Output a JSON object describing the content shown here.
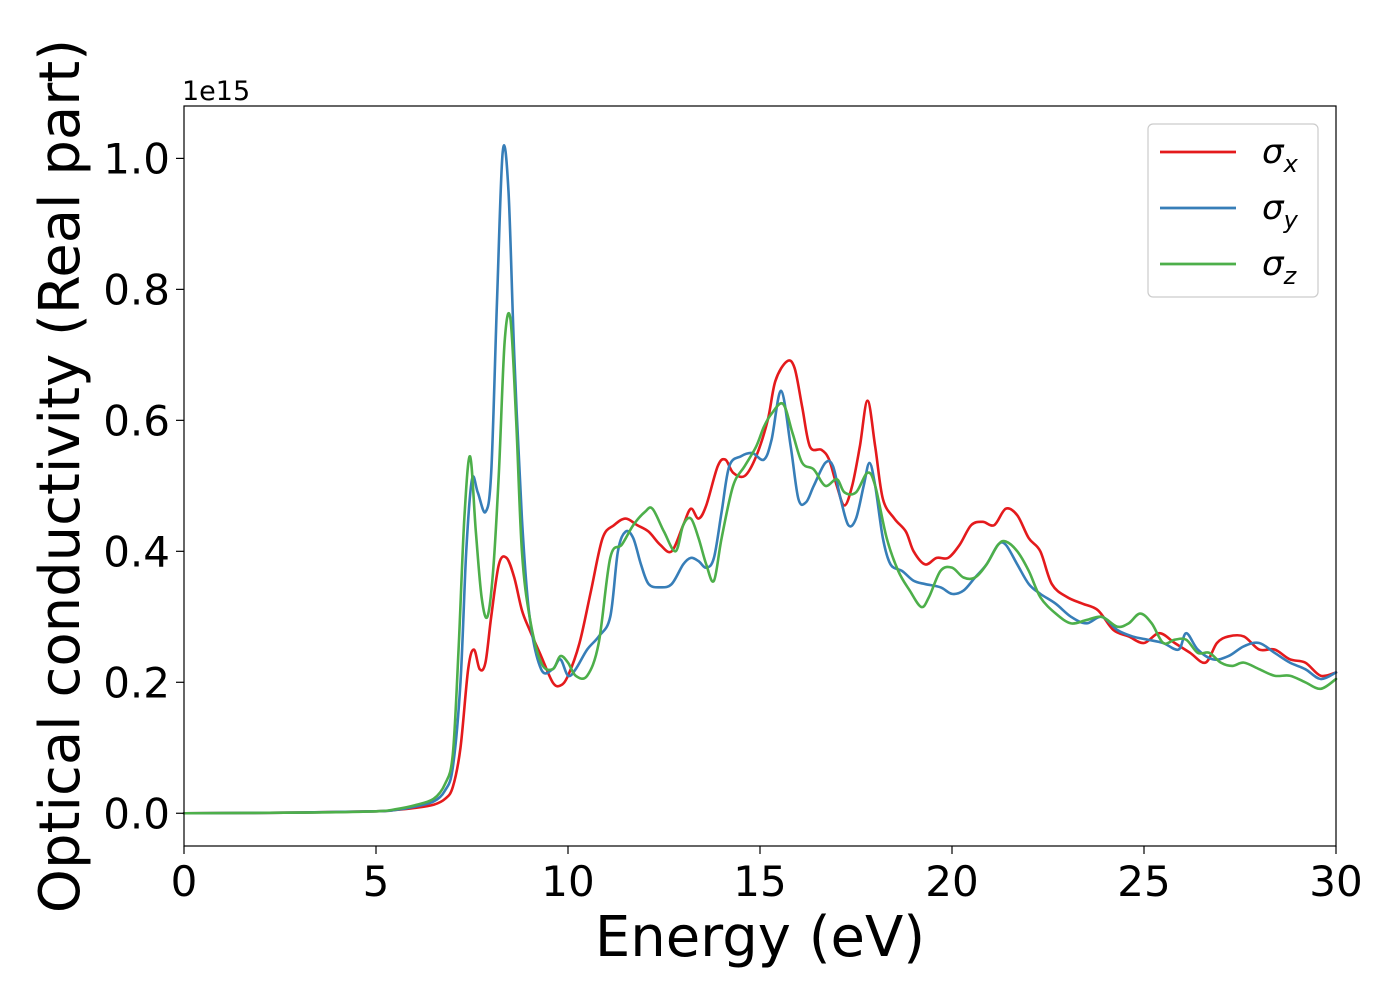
{
  "chart_data": {
    "type": "line",
    "title": "",
    "xlabel": "Energy (eV)",
    "ylabel": "Optical conductivity (Real part)",
    "y_offset_text": "1e15",
    "xlim": [
      0,
      30
    ],
    "ylim": [
      -0.05,
      1.08
    ],
    "x_ticks": [
      0,
      5,
      10,
      15,
      20,
      25,
      30
    ],
    "x_tick_labels": [
      "0",
      "5",
      "10",
      "15",
      "20",
      "25",
      "30"
    ],
    "y_ticks": [
      0.0,
      0.2,
      0.4,
      0.6,
      0.8,
      1.0
    ],
    "y_tick_labels": [
      "0.0",
      "0.2",
      "0.4",
      "0.6",
      "0.8",
      "1.0"
    ],
    "grid": false,
    "legend_position": "top-right",
    "series": [
      {
        "name": "σx",
        "legend_base": "σ",
        "legend_sub": "x",
        "color": "#e41a1c",
        "x": [
          0,
          3,
          5,
          5.5,
          6,
          6.5,
          6.8,
          7.0,
          7.2,
          7.4,
          7.55,
          7.7,
          7.85,
          8.0,
          8.2,
          8.4,
          8.6,
          8.8,
          9.0,
          9.3,
          9.6,
          9.8,
          10.0,
          10.3,
          10.6,
          10.9,
          11.2,
          11.5,
          11.8,
          12.1,
          12.4,
          12.7,
          13.0,
          13.2,
          13.4,
          13.6,
          13.9,
          14.1,
          14.3,
          14.6,
          14.9,
          15.2,
          15.4,
          15.7,
          15.9,
          16.1,
          16.3,
          16.6,
          16.8,
          17.0,
          17.2,
          17.4,
          17.6,
          17.8,
          18.0,
          18.2,
          18.5,
          18.8,
          19.0,
          19.3,
          19.6,
          19.9,
          20.2,
          20.5,
          20.8,
          21.1,
          21.4,
          21.7,
          22.0,
          22.3,
          22.6,
          23.0,
          23.4,
          23.8,
          24.2,
          24.6,
          25.0,
          25.4,
          25.8,
          26.2,
          26.6,
          26.9,
          27.2,
          27.6,
          28.0,
          28.4,
          28.8,
          29.2,
          29.6,
          30.0
        ],
        "y": [
          0.0,
          0.001,
          0.003,
          0.005,
          0.008,
          0.013,
          0.022,
          0.04,
          0.1,
          0.22,
          0.25,
          0.22,
          0.23,
          0.3,
          0.38,
          0.39,
          0.36,
          0.31,
          0.28,
          0.24,
          0.2,
          0.195,
          0.21,
          0.26,
          0.34,
          0.42,
          0.44,
          0.45,
          0.44,
          0.43,
          0.41,
          0.4,
          0.44,
          0.465,
          0.45,
          0.47,
          0.53,
          0.54,
          0.52,
          0.515,
          0.545,
          0.6,
          0.66,
          0.69,
          0.68,
          0.62,
          0.56,
          0.555,
          0.54,
          0.5,
          0.47,
          0.5,
          0.56,
          0.63,
          0.56,
          0.48,
          0.45,
          0.43,
          0.4,
          0.38,
          0.39,
          0.39,
          0.41,
          0.44,
          0.445,
          0.44,
          0.465,
          0.455,
          0.42,
          0.4,
          0.35,
          0.33,
          0.32,
          0.31,
          0.28,
          0.27,
          0.26,
          0.275,
          0.26,
          0.245,
          0.23,
          0.26,
          0.27,
          0.27,
          0.25,
          0.25,
          0.235,
          0.23,
          0.21,
          0.215
        ]
      },
      {
        "name": "σy",
        "legend_base": "σ",
        "legend_sub": "y",
        "color": "#377eb8",
        "x": [
          0,
          3,
          5,
          5.5,
          6,
          6.5,
          6.8,
          7.0,
          7.2,
          7.35,
          7.5,
          7.65,
          7.85,
          8.0,
          8.15,
          8.3,
          8.45,
          8.6,
          8.8,
          9.0,
          9.3,
          9.6,
          9.8,
          10.0,
          10.2,
          10.5,
          10.8,
          11.1,
          11.3,
          11.5,
          11.7,
          11.9,
          12.1,
          12.4,
          12.7,
          13.0,
          13.2,
          13.4,
          13.6,
          13.8,
          14.0,
          14.2,
          14.5,
          14.8,
          15.1,
          15.3,
          15.55,
          15.8,
          16.0,
          16.2,
          16.4,
          16.7,
          16.9,
          17.1,
          17.3,
          17.5,
          17.7,
          17.85,
          18.0,
          18.2,
          18.4,
          18.7,
          19.0,
          19.3,
          19.7,
          20.0,
          20.3,
          20.6,
          20.9,
          21.2,
          21.4,
          21.7,
          22.0,
          22.3,
          22.7,
          23.1,
          23.5,
          23.9,
          24.3,
          24.7,
          25.1,
          25.5,
          25.9,
          26.1,
          26.4,
          26.8,
          27.2,
          27.6,
          28.0,
          28.4,
          28.8,
          29.2,
          29.6,
          30.0
        ],
        "y": [
          0.0,
          0.001,
          0.003,
          0.005,
          0.01,
          0.018,
          0.035,
          0.07,
          0.2,
          0.4,
          0.51,
          0.49,
          0.46,
          0.52,
          0.78,
          1.01,
          0.95,
          0.7,
          0.45,
          0.3,
          0.22,
          0.22,
          0.235,
          0.21,
          0.22,
          0.25,
          0.27,
          0.3,
          0.4,
          0.43,
          0.42,
          0.38,
          0.35,
          0.345,
          0.35,
          0.38,
          0.39,
          0.385,
          0.375,
          0.39,
          0.46,
          0.53,
          0.545,
          0.55,
          0.54,
          0.57,
          0.645,
          0.56,
          0.48,
          0.475,
          0.5,
          0.535,
          0.53,
          0.48,
          0.44,
          0.45,
          0.5,
          0.535,
          0.5,
          0.42,
          0.38,
          0.37,
          0.355,
          0.35,
          0.345,
          0.335,
          0.34,
          0.36,
          0.38,
          0.41,
          0.41,
          0.38,
          0.35,
          0.335,
          0.32,
          0.3,
          0.29,
          0.3,
          0.28,
          0.27,
          0.265,
          0.26,
          0.25,
          0.275,
          0.25,
          0.235,
          0.24,
          0.255,
          0.26,
          0.245,
          0.23,
          0.22,
          0.205,
          0.215
        ]
      },
      {
        "name": "σz",
        "legend_base": "σ",
        "legend_sub": "z",
        "color": "#4daf4a",
        "x": [
          0,
          3,
          5,
          5.5,
          6,
          6.5,
          6.8,
          7.0,
          7.15,
          7.3,
          7.45,
          7.6,
          7.75,
          7.9,
          8.05,
          8.2,
          8.35,
          8.5,
          8.65,
          8.8,
          9.0,
          9.3,
          9.6,
          9.8,
          10.0,
          10.2,
          10.5,
          10.8,
          11.1,
          11.4,
          11.7,
          12.0,
          12.2,
          12.5,
          12.8,
          13.0,
          13.2,
          13.4,
          13.6,
          13.8,
          14.0,
          14.3,
          14.6,
          14.9,
          15.1,
          15.3,
          15.6,
          15.85,
          16.1,
          16.4,
          16.7,
          17.0,
          17.2,
          17.5,
          17.8,
          18.0,
          18.3,
          18.6,
          18.9,
          19.2,
          19.4,
          19.7,
          20.0,
          20.3,
          20.6,
          20.9,
          21.2,
          21.4,
          21.7,
          22.0,
          22.3,
          22.7,
          23.1,
          23.5,
          23.9,
          24.3,
          24.6,
          24.9,
          25.2,
          25.5,
          25.8,
          26.1,
          26.4,
          26.7,
          27.0,
          27.3,
          27.6,
          28.0,
          28.4,
          28.8,
          29.2,
          29.6,
          30.0
        ],
        "y": [
          0.0,
          0.001,
          0.003,
          0.006,
          0.012,
          0.022,
          0.045,
          0.09,
          0.25,
          0.45,
          0.545,
          0.43,
          0.33,
          0.3,
          0.37,
          0.52,
          0.72,
          0.755,
          0.6,
          0.4,
          0.3,
          0.23,
          0.22,
          0.24,
          0.23,
          0.21,
          0.21,
          0.26,
          0.39,
          0.41,
          0.44,
          0.46,
          0.465,
          0.43,
          0.4,
          0.44,
          0.45,
          0.42,
          0.38,
          0.355,
          0.42,
          0.5,
          0.53,
          0.56,
          0.59,
          0.61,
          0.625,
          0.58,
          0.535,
          0.525,
          0.5,
          0.51,
          0.49,
          0.49,
          0.52,
          0.5,
          0.42,
          0.37,
          0.34,
          0.315,
          0.33,
          0.37,
          0.375,
          0.36,
          0.36,
          0.38,
          0.41,
          0.415,
          0.4,
          0.37,
          0.33,
          0.305,
          0.29,
          0.295,
          0.3,
          0.285,
          0.29,
          0.305,
          0.29,
          0.26,
          0.265,
          0.265,
          0.245,
          0.245,
          0.23,
          0.225,
          0.23,
          0.22,
          0.21,
          0.21,
          0.2,
          0.19,
          0.205
        ]
      }
    ]
  }
}
